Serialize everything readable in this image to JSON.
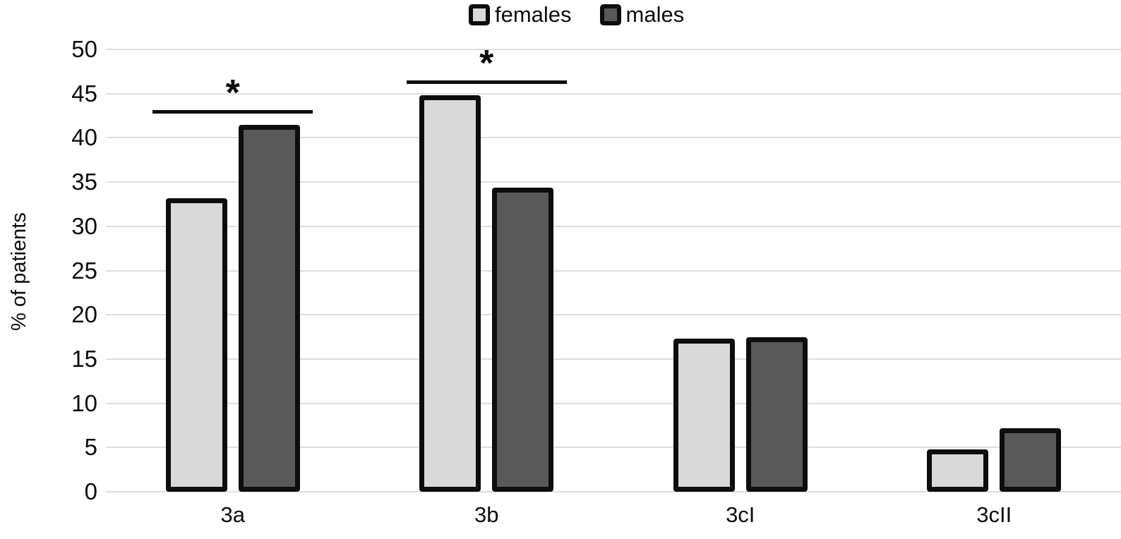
{
  "chart_data": {
    "type": "bar",
    "title": "",
    "categories": [
      "3a",
      "3b",
      "3cI",
      "3cII"
    ],
    "series": [
      {
        "name": "females",
        "color": "#d9d9d9",
        "values": [
          33.2,
          44.8,
          17.3,
          4.8
        ]
      },
      {
        "name": "males",
        "color": "#595959",
        "values": [
          41.5,
          34.4,
          17.5,
          7.2
        ]
      }
    ],
    "ylabel": "% of patients",
    "xlabel": "",
    "ylim": [
      0,
      50
    ],
    "ytick_step": 5,
    "ytick_labels": [
      "0",
      "5",
      "10",
      "15",
      "20",
      "25",
      "30",
      "35",
      "40",
      "45",
      "50"
    ],
    "grid": true,
    "gridline_color": "#dedede",
    "bar_border_color": "#0d0d0d",
    "legend_position": "top-center",
    "annotations": [
      {
        "type": "significance",
        "category": "3a",
        "symbol": "*"
      },
      {
        "type": "significance",
        "category": "3b",
        "symbol": "*"
      }
    ]
  }
}
